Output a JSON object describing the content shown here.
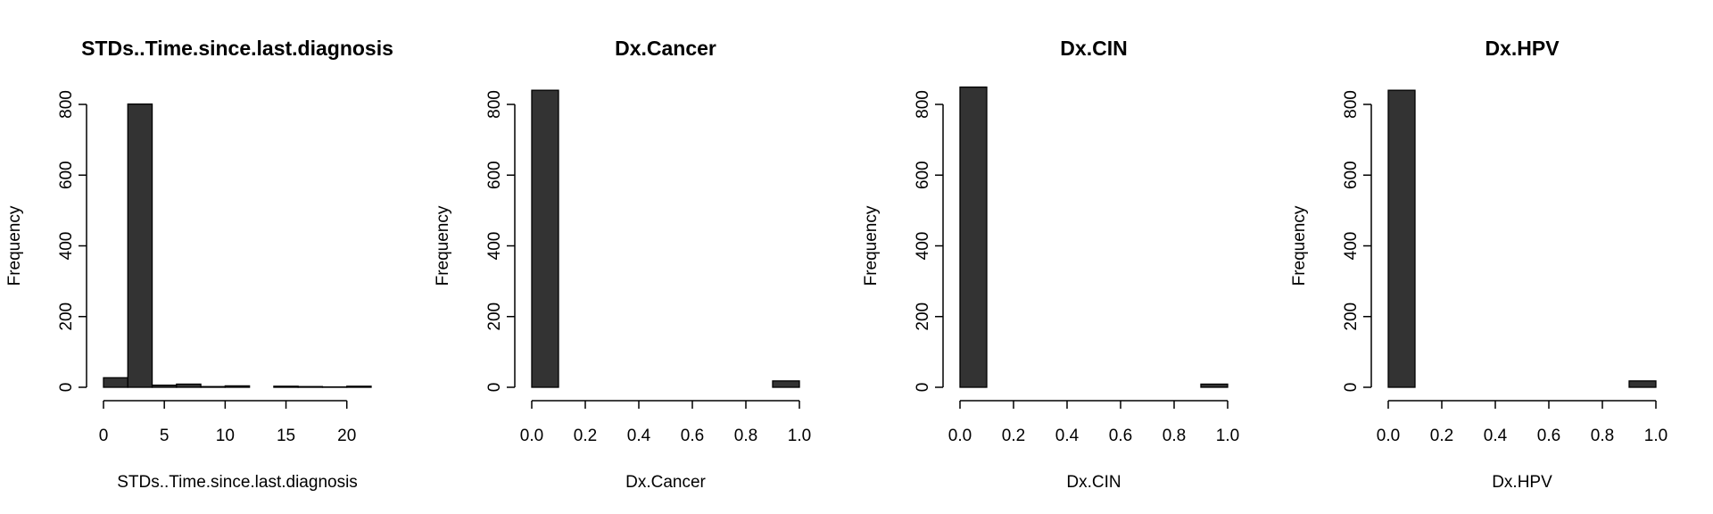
{
  "chart_data": [
    {
      "type": "bar",
      "title": "STDs..Time.since.last.diagnosis",
      "xlabel": "STDs..Time.since.last.diagnosis",
      "ylabel": "Frequency",
      "xlim": [
        0,
        22
      ],
      "ylim": [
        0,
        800
      ],
      "x_ticks": [
        0,
        5,
        10,
        15,
        20
      ],
      "y_ticks": [
        0,
        200,
        400,
        600,
        800
      ],
      "bins": [
        {
          "x0": 0,
          "x1": 2,
          "count": 27
        },
        {
          "x0": 2,
          "x1": 4,
          "count": 801
        },
        {
          "x0": 4,
          "x1": 6,
          "count": 6
        },
        {
          "x0": 6,
          "x1": 8,
          "count": 9
        },
        {
          "x0": 8,
          "x1": 10,
          "count": 2
        },
        {
          "x0": 10,
          "x1": 12,
          "count": 4
        },
        {
          "x0": 12,
          "x1": 14,
          "count": 0
        },
        {
          "x0": 14,
          "x1": 16,
          "count": 3
        },
        {
          "x0": 16,
          "x1": 18,
          "count": 2
        },
        {
          "x0": 18,
          "x1": 20,
          "count": 1
        },
        {
          "x0": 20,
          "x1": 22,
          "count": 3
        }
      ],
      "bar_color": "#333333",
      "grid": false
    },
    {
      "type": "bar",
      "title": "Dx.Cancer",
      "xlabel": "Dx.Cancer",
      "ylabel": "Frequency",
      "xlim": [
        0,
        1
      ],
      "ylim": [
        0,
        800
      ],
      "x_ticks": [
        "0.0",
        "0.2",
        "0.4",
        "0.6",
        "0.8",
        "1.0"
      ],
      "y_ticks": [
        0,
        200,
        400,
        600,
        800
      ],
      "bins": [
        {
          "x0": 0,
          "x1": 0.1,
          "count": 840
        },
        {
          "x0": 0.1,
          "x1": 0.2,
          "count": 0
        },
        {
          "x0": 0.2,
          "x1": 0.3,
          "count": 0
        },
        {
          "x0": 0.3,
          "x1": 0.4,
          "count": 0
        },
        {
          "x0": 0.4,
          "x1": 0.5,
          "count": 0
        },
        {
          "x0": 0.5,
          "x1": 0.6,
          "count": 0
        },
        {
          "x0": 0.6,
          "x1": 0.7,
          "count": 0
        },
        {
          "x0": 0.7,
          "x1": 0.8,
          "count": 0
        },
        {
          "x0": 0.8,
          "x1": 0.9,
          "count": 0
        },
        {
          "x0": 0.9,
          "x1": 1.0,
          "count": 18
        }
      ],
      "bar_color": "#333333",
      "grid": false
    },
    {
      "type": "bar",
      "title": "Dx.CIN",
      "xlabel": "Dx.CIN",
      "ylabel": "Frequency",
      "xlim": [
        0,
        1
      ],
      "ylim": [
        0,
        800
      ],
      "x_ticks": [
        "0.0",
        "0.2",
        "0.4",
        "0.6",
        "0.8",
        "1.0"
      ],
      "y_ticks": [
        0,
        200,
        400,
        600,
        800
      ],
      "bins": [
        {
          "x0": 0,
          "x1": 0.1,
          "count": 849
        },
        {
          "x0": 0.1,
          "x1": 0.2,
          "count": 0
        },
        {
          "x0": 0.2,
          "x1": 0.3,
          "count": 0
        },
        {
          "x0": 0.3,
          "x1": 0.4,
          "count": 0
        },
        {
          "x0": 0.4,
          "x1": 0.5,
          "count": 0
        },
        {
          "x0": 0.5,
          "x1": 0.6,
          "count": 0
        },
        {
          "x0": 0.6,
          "x1": 0.7,
          "count": 0
        },
        {
          "x0": 0.7,
          "x1": 0.8,
          "count": 0
        },
        {
          "x0": 0.8,
          "x1": 0.9,
          "count": 0
        },
        {
          "x0": 0.9,
          "x1": 1.0,
          "count": 9
        }
      ],
      "bar_color": "#333333",
      "grid": false
    },
    {
      "type": "bar",
      "title": "Dx.HPV",
      "xlabel": "Dx.HPV",
      "ylabel": "Frequency",
      "xlim": [
        0,
        1
      ],
      "ylim": [
        0,
        800
      ],
      "x_ticks": [
        "0.0",
        "0.2",
        "0.4",
        "0.6",
        "0.8",
        "1.0"
      ],
      "y_ticks": [
        0,
        200,
        400,
        600,
        800
      ],
      "bins": [
        {
          "x0": 0,
          "x1": 0.1,
          "count": 840
        },
        {
          "x0": 0.1,
          "x1": 0.2,
          "count": 0
        },
        {
          "x0": 0.2,
          "x1": 0.3,
          "count": 0
        },
        {
          "x0": 0.3,
          "x1": 0.4,
          "count": 0
        },
        {
          "x0": 0.4,
          "x1": 0.5,
          "count": 0
        },
        {
          "x0": 0.5,
          "x1": 0.6,
          "count": 0
        },
        {
          "x0": 0.6,
          "x1": 0.7,
          "count": 0
        },
        {
          "x0": 0.7,
          "x1": 0.8,
          "count": 0
        },
        {
          "x0": 0.8,
          "x1": 0.9,
          "count": 0
        },
        {
          "x0": 0.9,
          "x1": 1.0,
          "count": 18
        }
      ],
      "bar_color": "#333333",
      "grid": false
    }
  ]
}
